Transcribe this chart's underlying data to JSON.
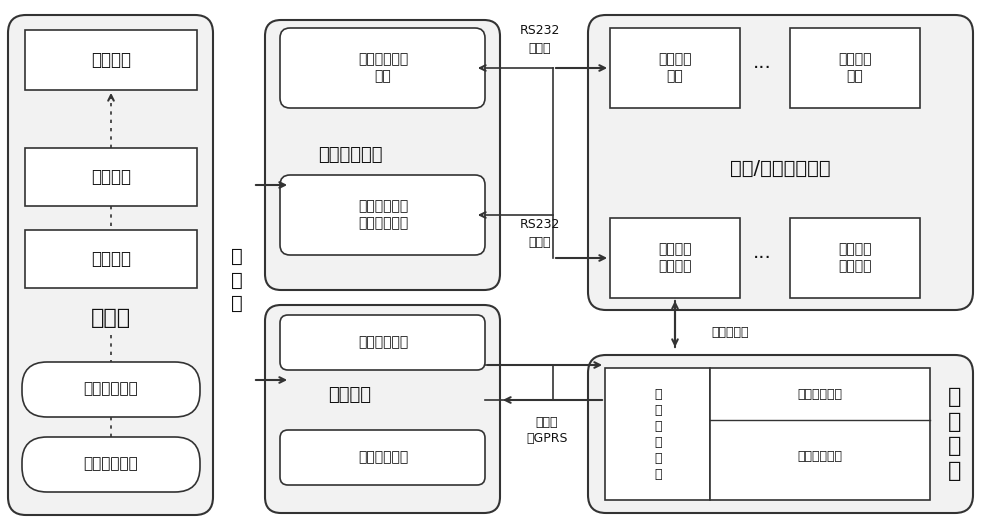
{
  "bg_color": "#ffffff",
  "lc": "#333333",
  "fc": "#ffffff",
  "ofc": "#ebebeb",
  "texts": {
    "tongxin_shuju": "通信数据",
    "peizhi_wenjian": "配置文件",
    "rizhi_wenjian": "日志文件",
    "shujuku": "数据库",
    "tongxin_jiance": "通信监测模块",
    "shuju_fenxi": "数据分析模块",
    "kongzhi_ji": "控\n制\n机",
    "shuju_zhuanfa": "数据转发模块",
    "zhuanfa_dianbiao": "转发电表被采\n信息",
    "zhuanfa_zaibo": "转发电表载波\n模块采集请求",
    "moni_zhuzhan": "模拟主站",
    "caiji_jieshou": "采集信息接收",
    "caiji_zhiling": "采集指令下发",
    "RS232_1": "RS232\n串口线",
    "RS232_2": "RS232\n串口线",
    "dianbiao_zaibo_mokuai": "电表/载波测试模块",
    "zhenshi_dianbiao1": "真实智能\n电表",
    "dots1": "···",
    "zhenshi_dianbiao2": "真实智能\n电表",
    "dianbiao_ceshi1": "电表测试\n载波模块",
    "dots2": "···",
    "dianbiao_ceshi2": "电表测试\n载波模块",
    "dianli_xian_zaibo": "电力线载波",
    "caiji_zhongduan": "采\n集\n终\n端",
    "shangxing_tongxin": "上\n行\n通\n信\n模\n块",
    "xiaxing_tongxin": "下行通信模块",
    "zhongduan_kongzhi": "终端控制模块",
    "yitaiwang_GPRS": "以太网\n或GPRS"
  }
}
